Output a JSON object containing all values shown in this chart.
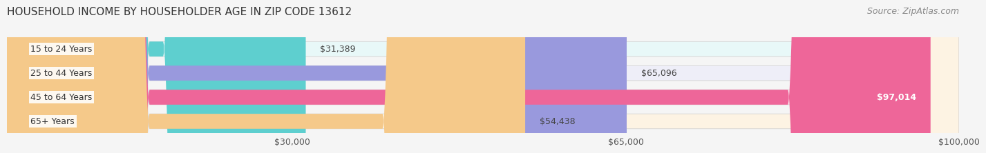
{
  "title": "HOUSEHOLD INCOME BY HOUSEHOLDER AGE IN ZIP CODE 13612",
  "source": "Source: ZipAtlas.com",
  "categories": [
    "15 to 24 Years",
    "25 to 44 Years",
    "45 to 64 Years",
    "65+ Years"
  ],
  "values": [
    31389,
    65096,
    97014,
    54438
  ],
  "bar_colors": [
    "#5ecfcf",
    "#9999dd",
    "#ee6699",
    "#f5c98a"
  ],
  "bg_colors": [
    "#e8f8f8",
    "#eeeef8",
    "#fce8f0",
    "#fdf3e3"
  ],
  "value_labels": [
    "$31,389",
    "$65,096",
    "$97,014",
    "$54,438"
  ],
  "value_inside": [
    false,
    false,
    true,
    false
  ],
  "xmax": 100000,
  "xticks": [
    30000,
    65000,
    100000
  ],
  "xtick_labels": [
    "$30,000",
    "$65,000",
    "$100,000"
  ],
  "title_fontsize": 11,
  "source_fontsize": 9,
  "bar_label_fontsize": 9,
  "category_fontsize": 9,
  "tick_fontsize": 9,
  "fig_bg": "#f5f5f5"
}
